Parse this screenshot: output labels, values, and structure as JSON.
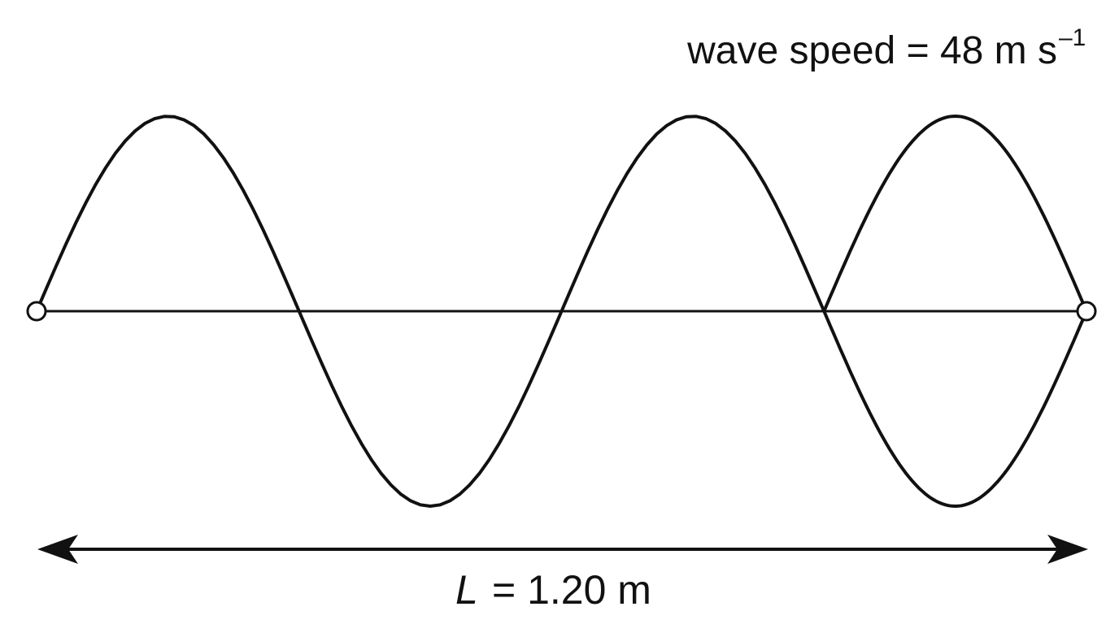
{
  "labels": {
    "wave_speed": {
      "text": "wave speed = 48 m s",
      "superscript": "–1"
    },
    "length": {
      "symbol": "L",
      "text": "= 1.20 m"
    }
  }
}
